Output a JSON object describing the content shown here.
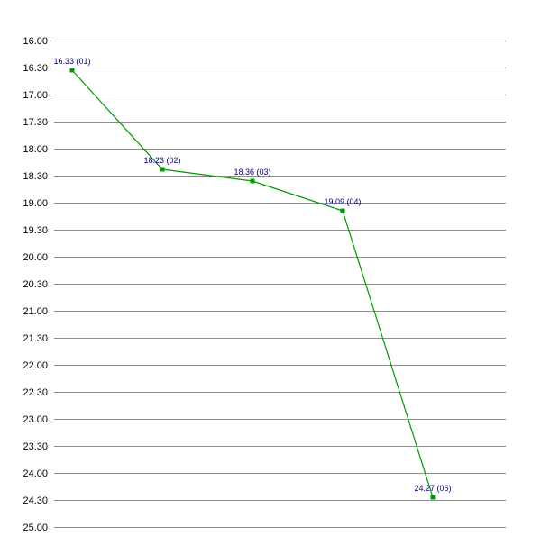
{
  "chart_data": {
    "type": "line",
    "title": "",
    "xlabel": "",
    "ylabel": "",
    "y_inverted": true,
    "ylim": [
      16.0,
      25.0
    ],
    "y_ticks": [
      "16.00",
      "16.30",
      "17.00",
      "17.30",
      "18.00",
      "18.30",
      "19.00",
      "19.30",
      "20.00",
      "20.30",
      "21.00",
      "21.30",
      "22.00",
      "22.30",
      "23.00",
      "23.30",
      "24.00",
      "24.30",
      "25.00"
    ],
    "grid": true,
    "legend": "none",
    "colors": {
      "line": "#009900",
      "label": "#000080",
      "grid": "#8c8c8c"
    },
    "points": [
      {
        "x": 1,
        "y": 16.55,
        "label": "16.33 (01)"
      },
      {
        "x": 2,
        "y": 18.383,
        "label": "18.23 (02)"
      },
      {
        "x": 3,
        "y": 18.6,
        "label": "18.36 (03)"
      },
      {
        "x": 4,
        "y": 19.15,
        "label": "19.09 (04)"
      },
      {
        "x": 6,
        "y": 24.45,
        "label": "24.27 (06)"
      }
    ]
  }
}
